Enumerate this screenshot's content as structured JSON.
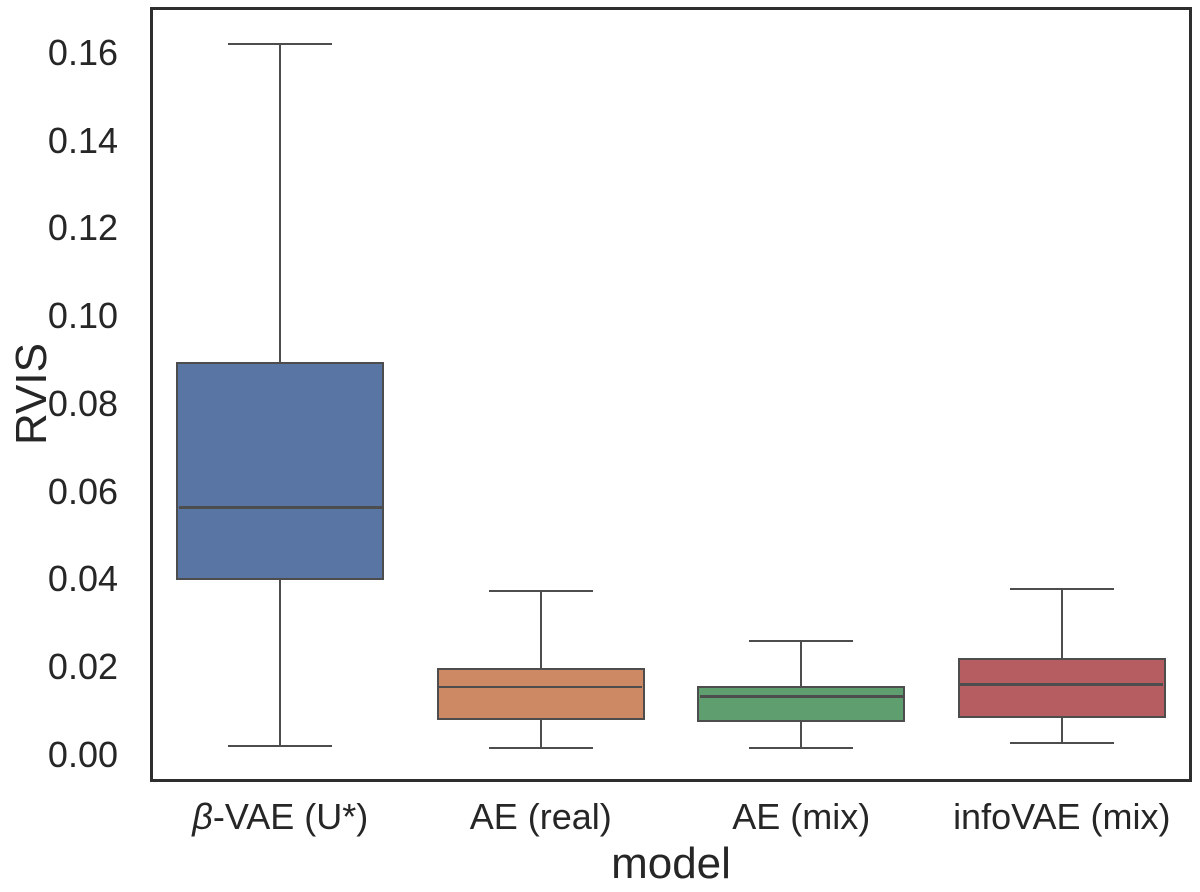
{
  "figure": {
    "background": "#ffffff",
    "spine_color": "#2e2e2e",
    "line_color": "#4d4d4d",
    "text_color": "#262626"
  },
  "chart_data": {
    "type": "boxplot",
    "title": "",
    "xlabel": "model",
    "ylabel": "RVIS",
    "ylim": [
      -0.0062,
      0.1705
    ],
    "grid": false,
    "legend": false,
    "y_ticks": [
      0.0,
      0.02,
      0.04,
      0.06,
      0.08,
      0.1,
      0.12,
      0.14,
      0.16
    ],
    "y_tick_labels": [
      "0.00",
      "0.02",
      "0.04",
      "0.06",
      "0.08",
      "0.10",
      "0.12",
      "0.14",
      "0.16"
    ],
    "categories": [
      "β-VAE (U*)",
      "AE (real)",
      "AE (mix)",
      "infoVAE (mix)"
    ],
    "series": [
      {
        "name": "β-VAE (U*)",
        "color": "#5875a4",
        "whisker_low": 0.002,
        "q1": 0.0398,
        "median": 0.0564,
        "q3": 0.0896,
        "whisker_high": 0.162
      },
      {
        "name": "AE (real)",
        "color": "#cc8963",
        "whisker_low": 0.0015,
        "q1": 0.0079,
        "median": 0.0155,
        "q3": 0.0198,
        "whisker_high": 0.0374
      },
      {
        "name": "AE (mix)",
        "color": "#5f9e6e",
        "whisker_low": 0.0016,
        "q1": 0.0074,
        "median": 0.0133,
        "q3": 0.0157,
        "whisker_high": 0.026
      },
      {
        "name": "infoVAE (mix)",
        "color": "#b55d60",
        "whisker_low": 0.0027,
        "q1": 0.0084,
        "median": 0.016,
        "q3": 0.022,
        "whisker_high": 0.0377
      }
    ]
  }
}
